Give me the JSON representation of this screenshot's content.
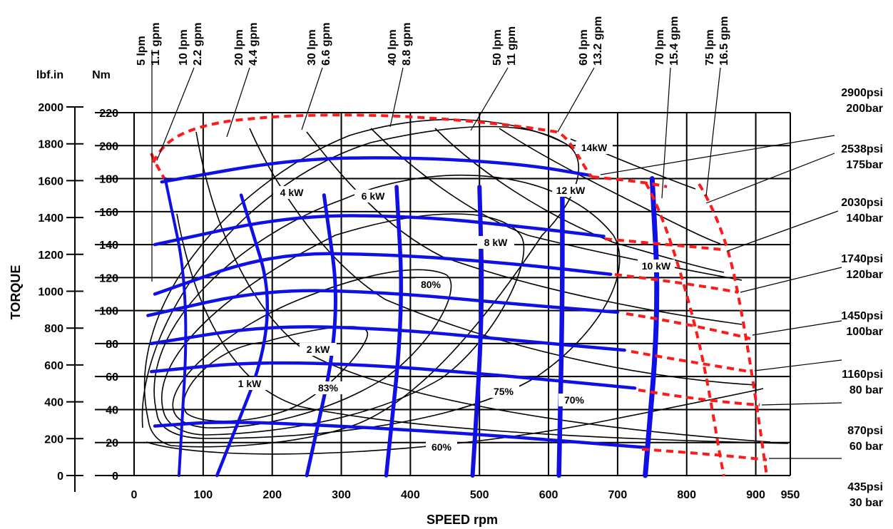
{
  "chart_data": {
    "type": "line",
    "title": "",
    "xlabel": "SPEED rpm",
    "ylabel": "TORQUE",
    "left_unit": "lbf.in",
    "right_unit": "Nm",
    "xlim": [
      0,
      950
    ],
    "ylim_nm": [
      0,
      220
    ],
    "x_ticks": [
      "0",
      "100",
      "200",
      "300",
      "400",
      "500",
      "600",
      "700",
      "800",
      "900",
      "950"
    ],
    "nm_ticks": [
      "0",
      "20",
      "40",
      "60",
      "80",
      "100",
      "120",
      "140",
      "160",
      "180",
      "200",
      "220"
    ],
    "lbf_ticks": [
      "0",
      "200",
      "400",
      "600",
      "800",
      "1000",
      "1200",
      "1400",
      "1600",
      "1800",
      "2000"
    ],
    "grid": true,
    "flow_labels": [
      {
        "lpm": "5 lpm",
        "gpm": "1.1 gpm"
      },
      {
        "lpm": "10 lpm",
        "gpm": "2.2 gpm"
      },
      {
        "lpm": "20 lpm",
        "gpm": "4.4 gpm"
      },
      {
        "lpm": "30 lpm",
        "gpm": "6.6 gpm"
      },
      {
        "lpm": "40 lpm",
        "gpm": "8.8 gpm"
      },
      {
        "lpm": "50 lpm",
        "gpm": "11 gpm"
      },
      {
        "lpm": "60 lpm",
        "gpm": "13.2 gpm"
      },
      {
        "lpm": "70 lpm",
        "gpm": "15.4 gpm"
      },
      {
        "lpm": "75 lpm",
        "gpm": "16.5 gpm"
      }
    ],
    "pressure_labels": [
      {
        "psi": "2900psi",
        "bar": "200bar"
      },
      {
        "psi": "2538psi",
        "bar": "175bar"
      },
      {
        "psi": "2030psi",
        "bar": "140bar"
      },
      {
        "psi": "1740psi",
        "bar": "120bar"
      },
      {
        "psi": "1450psi",
        "bar": "100bar"
      },
      {
        "psi": "1160psi",
        "bar": "80 bar"
      },
      {
        "psi": "870psi",
        "bar": "60 bar"
      },
      {
        "psi": "435psi",
        "bar": "30 bar"
      }
    ],
    "power_labels": [
      "1 kW",
      "2 kW",
      "4 kW",
      "6 kW",
      "8 kW",
      "10 kW",
      "12 kW",
      "14kW"
    ],
    "efficiency_labels": [
      "83%",
      "80%",
      "75%",
      "70%",
      "60%"
    ],
    "constant_pressure_curves_nm": [
      {
        "name": "30 bar",
        "points": [
          [
            30,
            30
          ],
          [
            130,
            33
          ],
          [
            300,
            30
          ],
          [
            500,
            25
          ],
          [
            740,
            17
          ]
        ]
      },
      {
        "name": "60 bar",
        "points": [
          [
            25,
            63
          ],
          [
            170,
            69
          ],
          [
            350,
            67
          ],
          [
            550,
            60
          ],
          [
            725,
            53
          ]
        ]
      },
      {
        "name": "80 bar",
        "points": [
          [
            25,
            80
          ],
          [
            190,
            91
          ],
          [
            370,
            89
          ],
          [
            550,
            82
          ],
          [
            710,
            76
          ]
        ]
      },
      {
        "name": "100 bar",
        "points": [
          [
            20,
            97
          ],
          [
            190,
            113
          ],
          [
            370,
            111
          ],
          [
            550,
            104
          ],
          [
            700,
            99
          ]
        ]
      },
      {
        "name": "120 bar",
        "points": [
          [
            30,
            110
          ],
          [
            200,
            135
          ],
          [
            380,
            134
          ],
          [
            560,
            128
          ],
          [
            690,
            122
          ]
        ]
      },
      {
        "name": "140 bar",
        "points": [
          [
            30,
            140
          ],
          [
            230,
            158
          ],
          [
            420,
            157
          ],
          [
            580,
            150
          ],
          [
            680,
            145
          ]
        ]
      },
      {
        "name": "175 bar",
        "points": [
          [
            40,
            178
          ],
          [
            230,
            192
          ],
          [
            400,
            193
          ],
          [
            560,
            189
          ],
          [
            660,
            182
          ]
        ]
      }
    ],
    "constant_flow_curves_nm": [
      {
        "name": "10 lpm",
        "points": [
          [
            45,
            180
          ],
          [
            80,
            110
          ],
          [
            65,
            0
          ]
        ]
      },
      {
        "name": "20 lpm",
        "points": [
          [
            155,
            170
          ],
          [
            210,
            95
          ],
          [
            120,
            0
          ]
        ]
      },
      {
        "name": "30 lpm",
        "points": [
          [
            275,
            170
          ],
          [
            300,
            95
          ],
          [
            250,
            0
          ]
        ]
      },
      {
        "name": "40 lpm",
        "points": [
          [
            380,
            175
          ],
          [
            390,
            100
          ],
          [
            365,
            0
          ]
        ]
      },
      {
        "name": "50 lpm",
        "points": [
          [
            500,
            175
          ],
          [
            505,
            100
          ],
          [
            490,
            0
          ]
        ]
      },
      {
        "name": "60 lpm",
        "points": [
          [
            620,
            175
          ],
          [
            620,
            100
          ],
          [
            615,
            0
          ]
        ]
      },
      {
        "name": "70 lpm",
        "points": [
          [
            750,
            180
          ],
          [
            760,
            100
          ],
          [
            740,
            0
          ]
        ]
      }
    ]
  }
}
